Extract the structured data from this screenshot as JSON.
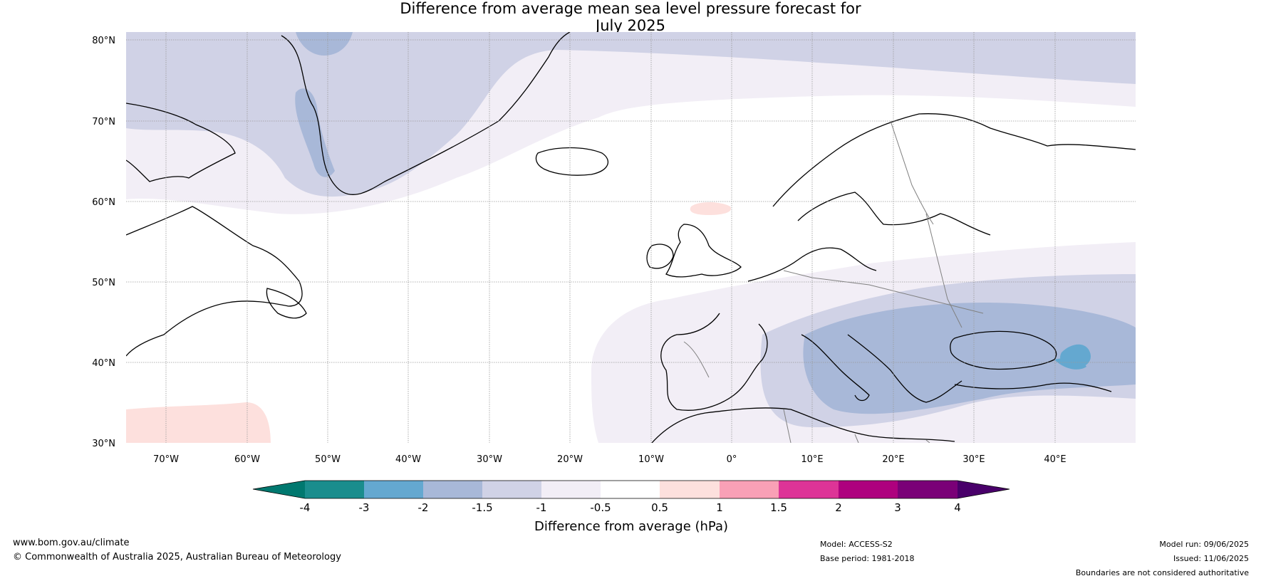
{
  "title_line1": "Difference from average mean sea level pressure forecast for",
  "title_line2": "July 2025",
  "map": {
    "lat_labels": [
      "80°N",
      "70°N",
      "60°N",
      "50°N",
      "40°N",
      "30°N"
    ],
    "lon_labels": [
      "70°W",
      "60°W",
      "50°W",
      "40°W",
      "30°W",
      "20°W",
      "10°W",
      "0°",
      "10°E",
      "20°E",
      "30°E",
      "40°E"
    ],
    "colors": {
      "land_outline": "#000000",
      "border": "#808080",
      "grid": "#999999"
    }
  },
  "colorbar": {
    "label": "Difference from average (hPa)",
    "ticks": [
      "-4",
      "-3",
      "-2",
      "-1.5",
      "-1",
      "-0.5",
      "0.5",
      "1",
      "1.5",
      "2",
      "3",
      "4"
    ],
    "colors": [
      "#1a8d8d",
      "#64a8d0",
      "#a8b8d8",
      "#d0d2e6",
      "#f2eef6",
      "#ffffff",
      "#fde0dd",
      "#f9a0b6",
      "#dd3497",
      "#ae017e",
      "#7a0177"
    ],
    "under_color": "#00786f",
    "over_color": "#49006a"
  },
  "footer": {
    "website": "www.bom.gov.au/climate",
    "copyright": "© Commonwealth of Australia 2025, Australian Bureau of Meteorology",
    "model": "Model: ACCESS-S2",
    "base_period": "Base period: 1981-2018",
    "model_run": "Model run: 09/06/2025",
    "issued": "Issued: 11/06/2025",
    "disclaimer": "Boundaries are not considered authoritative"
  }
}
